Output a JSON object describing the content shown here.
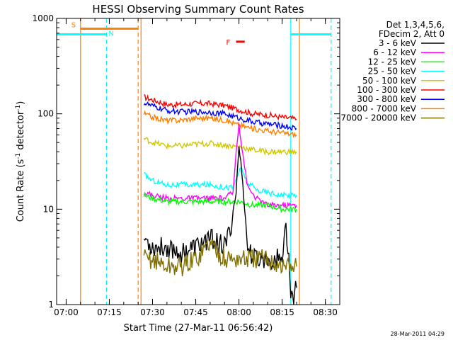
{
  "chart_data": {
    "type": "line",
    "title": "HESSI Observing Summary Count Rates",
    "xlabel": "Start Time (27-Mar-11 06:56:42)",
    "ylabel_main": "Count Rate (s",
    "ylabel_sup1": "-1",
    "ylabel_mid": " detector",
    "ylabel_sup2": "-1",
    "ylabel_end": ")",
    "y_scale": "log",
    "ylim": [
      1,
      1000
    ],
    "xlim": [
      "06:56:42",
      "08:35:00"
    ],
    "x_ticks": [
      {
        "t": "07:00",
        "label": "07:00"
      },
      {
        "t": "07:15",
        "label": "07:15"
      },
      {
        "t": "07:30",
        "label": "07:30"
      },
      {
        "t": "07:45",
        "label": "07:45"
      },
      {
        "t": "08:00",
        "label": "08:00"
      },
      {
        "t": "08:15",
        "label": "08:15"
      },
      {
        "t": "08:30",
        "label": "08:30"
      }
    ],
    "y_ticks": [
      {
        "v": 1,
        "label": "1"
      },
      {
        "v": 10,
        "label": "10"
      },
      {
        "v": 100,
        "label": "100"
      },
      {
        "v": 1000,
        "label": "1000"
      }
    ],
    "legend": {
      "placement": "right",
      "header": [
        "Det 1,3,4,5,6,",
        "FDecim 2, Att 0"
      ],
      "entries": [
        {
          "label": "3 - 6 keV",
          "color": "#000000"
        },
        {
          "label": "6 - 12 keV",
          "color": "#ff00ff"
        },
        {
          "label": "12 - 25 keV",
          "color": "#00ff00"
        },
        {
          "label": "25 - 50 keV",
          "color": "#00ffff"
        },
        {
          "label": "50 - 100 keV",
          "color": "#d2c800"
        },
        {
          "label": "100 - 300 keV",
          "color": "#ff0000"
        },
        {
          "label": "300 - 800 keV",
          "color": "#0000ff"
        },
        {
          "label": "800 - 7000 keV",
          "color": "#ff7f00"
        },
        {
          "label": "7000 - 20000 keV",
          "color": "#807000"
        }
      ]
    },
    "annotations": {
      "saa": {
        "label": "S",
        "start": "07:05",
        "end": "07:25",
        "level": 780,
        "color": "#ff7f00"
      },
      "night": [
        {
          "label": "N",
          "start": "06:56:42",
          "end": "07:14",
          "level": 680,
          "color": "#00ffff"
        },
        {
          "label": "",
          "start": "08:18",
          "end": "08:32",
          "level": 680,
          "color": "#00ffff"
        }
      ],
      "flare": {
        "label": "F",
        "start": "07:59",
        "end": "08:02",
        "level": 570,
        "color": "#ff0000"
      },
      "vlines": [
        {
          "t": "07:05",
          "color": "#ff7f00",
          "dashed": false
        },
        {
          "t": "07:14",
          "color": "#00ffff",
          "dashed": true
        },
        {
          "t": "07:25",
          "color": "#ff7f00",
          "dashed": true
        },
        {
          "t": "07:26",
          "color": "#ff7f00",
          "dashed": false
        },
        {
          "t": "08:18",
          "color": "#00ffff",
          "dashed": false
        },
        {
          "t": "08:21",
          "color": "#ff7f00",
          "dashed": false
        },
        {
          "t": "08:32",
          "color": "#00ffff",
          "dashed": true
        }
      ]
    },
    "series": [
      {
        "band": "100 - 300 keV",
        "color": "#ff0000",
        "x": [
          "07:27",
          "07:30",
          "07:35",
          "07:40",
          "07:45",
          "07:50",
          "07:55",
          "08:00",
          "08:05",
          "08:10",
          "08:15",
          "08:20"
        ],
        "y": [
          150,
          140,
          125,
          125,
          128,
          128,
          122,
          110,
          100,
          97,
          92,
          88
        ]
      },
      {
        "band": "300 - 800 keV",
        "color": "#0000ff",
        "x": [
          "07:27",
          "07:30",
          "07:35",
          "07:40",
          "07:45",
          "07:50",
          "07:55",
          "08:00",
          "08:05",
          "08:10",
          "08:15",
          "08:20"
        ],
        "y": [
          130,
          120,
          108,
          105,
          105,
          104,
          100,
          90,
          82,
          78,
          75,
          70
        ]
      },
      {
        "band": "800 - 7000 keV",
        "color": "#ff7f00",
        "x": [
          "07:27",
          "07:30",
          "07:35",
          "07:40",
          "07:45",
          "07:50",
          "07:55",
          "08:00",
          "08:05",
          "08:10",
          "08:15",
          "08:20"
        ],
        "y": [
          100,
          92,
          85,
          86,
          90,
          90,
          86,
          76,
          70,
          66,
          63,
          60
        ]
      },
      {
        "band": "50 - 100 keV",
        "color": "#d2c800",
        "x": [
          "07:27",
          "07:30",
          "07:35",
          "07:40",
          "07:45",
          "07:50",
          "07:55",
          "08:00",
          "08:05",
          "08:10",
          "08:15",
          "08:20"
        ],
        "y": [
          55,
          50,
          46,
          46,
          48,
          49,
          47,
          45,
          42,
          40,
          40,
          40
        ]
      },
      {
        "band": "25 - 50 keV",
        "color": "#00ffff",
        "x": [
          "07:27",
          "07:30",
          "07:35",
          "07:40",
          "07:45",
          "07:50",
          "07:55",
          "07:58",
          "08:00",
          "08:01",
          "08:03",
          "08:06",
          "08:10",
          "08:15",
          "08:20"
        ],
        "y": [
          23,
          20,
          18,
          18,
          18,
          18,
          17,
          17,
          25,
          26,
          19,
          16,
          15,
          14,
          14
        ]
      },
      {
        "band": "6 - 12 keV",
        "color": "#ff00ff",
        "x": [
          "07:27",
          "07:30",
          "07:35",
          "07:40",
          "07:45",
          "07:50",
          "07:55",
          "07:58",
          "07:59",
          "08:00",
          "08:01",
          "08:03",
          "08:06",
          "08:10",
          "08:15",
          "08:20"
        ],
        "y": [
          15,
          14,
          13,
          13,
          13,
          13,
          13,
          15,
          40,
          80,
          45,
          17,
          13,
          11,
          11,
          11
        ]
      },
      {
        "band": "12 - 25 keV",
        "color": "#00ff00",
        "x": [
          "07:27",
          "07:30",
          "07:35",
          "07:40",
          "07:45",
          "07:50",
          "07:55",
          "08:00",
          "08:05",
          "08:10",
          "08:15",
          "08:20"
        ],
        "y": [
          14,
          13,
          12,
          12,
          12,
          12,
          12,
          12,
          11,
          11,
          10,
          10
        ]
      },
      {
        "band": "3 - 6 keV",
        "color": "#000000",
        "x": [
          "07:27",
          "07:30",
          "07:35",
          "07:40",
          "07:45",
          "07:50",
          "07:55",
          "07:57",
          "07:59",
          "08:00",
          "08:01",
          "08:02",
          "08:03",
          "08:05",
          "08:10",
          "08:15",
          "08:16",
          "08:17",
          "08:18",
          "08:19",
          "08:20"
        ],
        "y": [
          5,
          4,
          4,
          3.5,
          4,
          5,
          4,
          6,
          15,
          45,
          25,
          10,
          4,
          3,
          3,
          3,
          7,
          4,
          1.3,
          1.2,
          1.5
        ]
      },
      {
        "band": "7000 - 20000 keV",
        "color": "#807000",
        "x": [
          "07:27",
          "07:30",
          "07:35",
          "07:40",
          "07:45",
          "07:50",
          "07:55",
          "08:00",
          "08:05",
          "08:10",
          "08:15",
          "08:20"
        ],
        "y": [
          3,
          3,
          2.5,
          2.5,
          3,
          4.5,
          3,
          3,
          3,
          3,
          2.5,
          2.5
        ]
      }
    ],
    "footer_timestamp": "28-Mar-2011 04:29"
  }
}
